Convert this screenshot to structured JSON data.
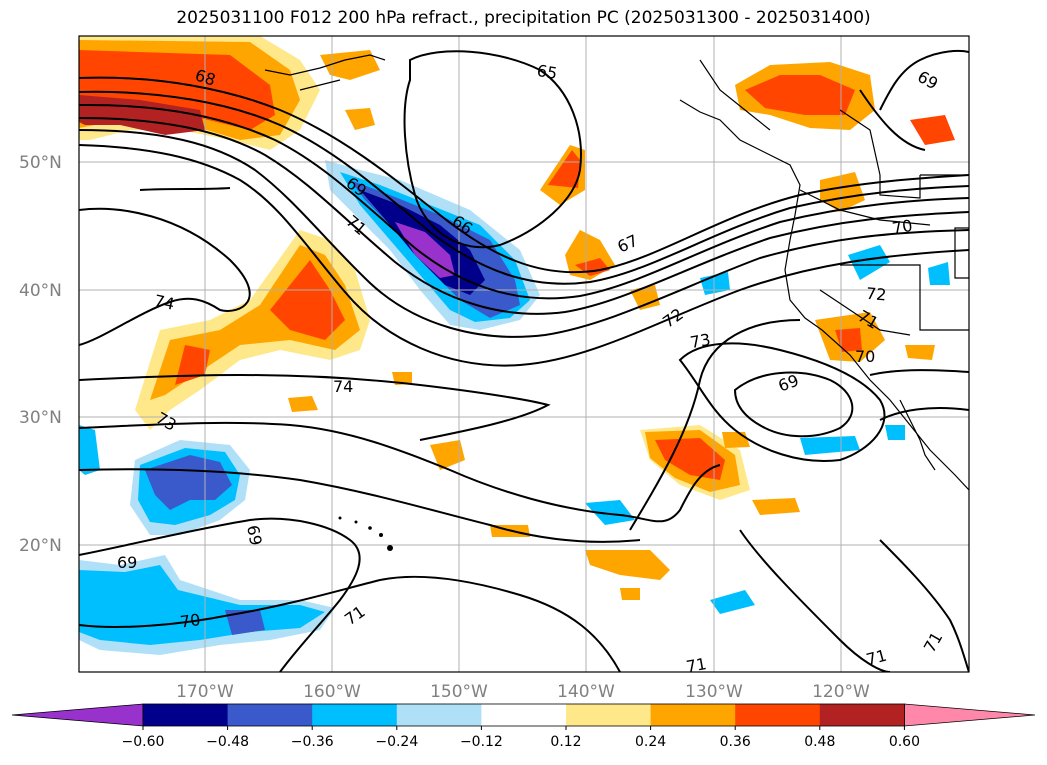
{
  "title": "2025031100 F012 200 hPa refract., precipitation PC (2025031300 - 2025031400)",
  "lat_labels": [
    "50°N",
    "40°N",
    "30°N",
    "20°N"
  ],
  "lon_labels": [
    "170°W",
    "160°W",
    "150°W",
    "140°W",
    "130°W",
    "120°W"
  ],
  "contour_labels": [
    "68",
    "65",
    "69",
    "69",
    "66",
    "71",
    "67",
    "70",
    "74",
    "72",
    "72",
    "71",
    "73",
    "70",
    "69",
    "74",
    "73",
    "69",
    "69",
    "70",
    "71",
    "71",
    "71",
    "71"
  ],
  "colorbar": {
    "colors": [
      "#9932cc",
      "#00008b",
      "#3a5acc",
      "#00bfff",
      "#afe0f8",
      "#ffffff",
      "#ffe88a",
      "#ffa500",
      "#ff4500",
      "#b22222",
      "#ff88aa"
    ],
    "tick_labels": [
      "−0.60",
      "−0.48",
      "−0.36",
      "−0.24",
      "−0.12",
      "0.12",
      "0.24",
      "0.36",
      "0.48",
      "0.60"
    ]
  }
}
